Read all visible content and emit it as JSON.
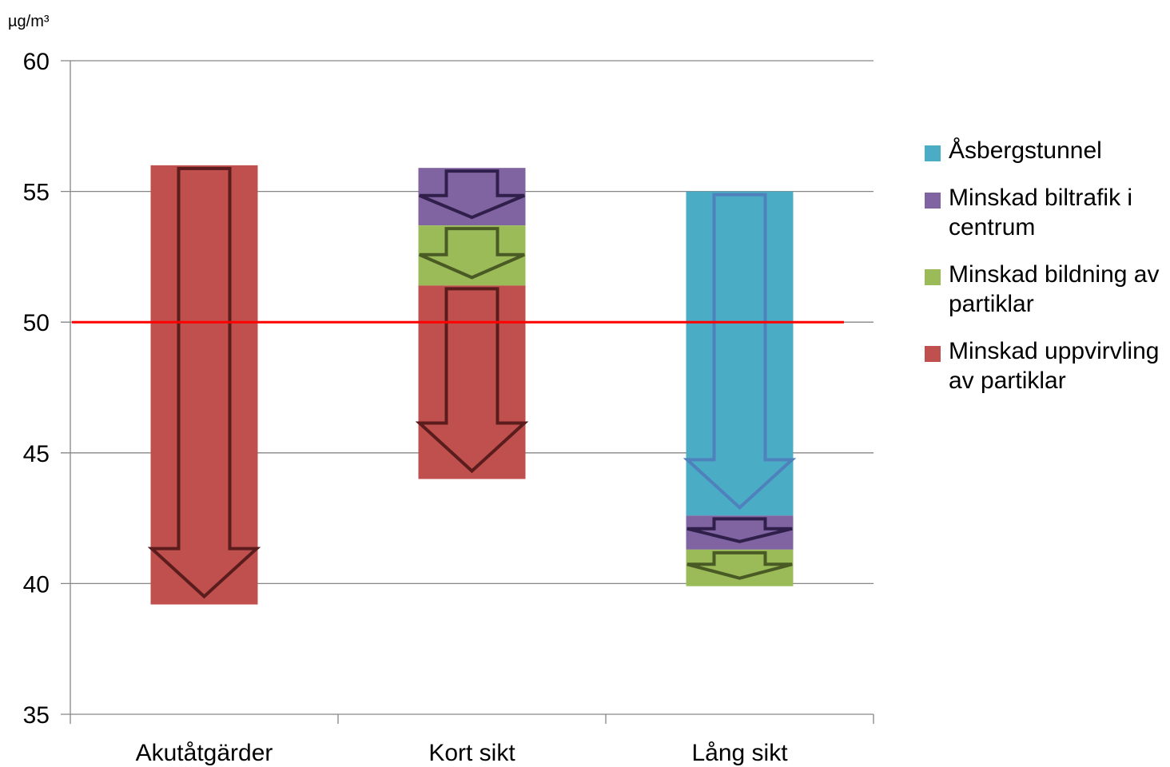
{
  "chart_data": {
    "type": "bar",
    "subtype": "stacked-floating",
    "ylabel": "µg/m³",
    "ylim": [
      35,
      60
    ],
    "yticks": [
      60,
      55,
      50,
      45,
      40,
      35
    ],
    "grid": true,
    "categories": [
      "Akutåtgärder",
      "Kort sikt",
      "Lång sikt"
    ],
    "reference_line": {
      "value": 50,
      "color": "#ff0000"
    },
    "segments": [
      {
        "category": "Akutåtgärder",
        "series": "Minskad uppvirvling av partiklar",
        "from": 56.0,
        "to": 39.2,
        "arrow_color": "#5a1c1c"
      },
      {
        "category": "Kort sikt",
        "series": "Minskad biltrafik i centrum",
        "from": 55.9,
        "to": 53.7,
        "arrow_color": "#2f1f4a"
      },
      {
        "category": "Kort sikt",
        "series": "Minskad bildning av partiklar",
        "from": 53.7,
        "to": 51.4,
        "arrow_color": "#4a5a25"
      },
      {
        "category": "Kort sikt",
        "series": "Minskad uppvirvling av partiklar",
        "from": 51.4,
        "to": 44.0,
        "arrow_color": "#5a1c1c"
      },
      {
        "category": "Lång sikt",
        "series": "Åsbergstunnel",
        "from": 55.0,
        "to": 42.6,
        "arrow_color": "#4f81bd"
      },
      {
        "category": "Lång sikt",
        "series": "Minskad biltrafik i centrum",
        "from": 42.6,
        "to": 41.3,
        "arrow_color": "#2f1f4a"
      },
      {
        "category": "Lång sikt",
        "series": "Minskad bildning av partiklar",
        "from": 41.3,
        "to": 39.9,
        "arrow_color": "#4a5a25"
      }
    ],
    "series": [
      {
        "name": "Åsbergstunnel",
        "color": "#4bacc6"
      },
      {
        "name": "Minskad biltrafik i centrum",
        "color": "#8064a2"
      },
      {
        "name": "Minskad bildning av partiklar",
        "color": "#9bbb59"
      },
      {
        "name": "Minskad uppvirvling av partiklar",
        "color": "#c0504d"
      }
    ],
    "legend_position": "right"
  }
}
